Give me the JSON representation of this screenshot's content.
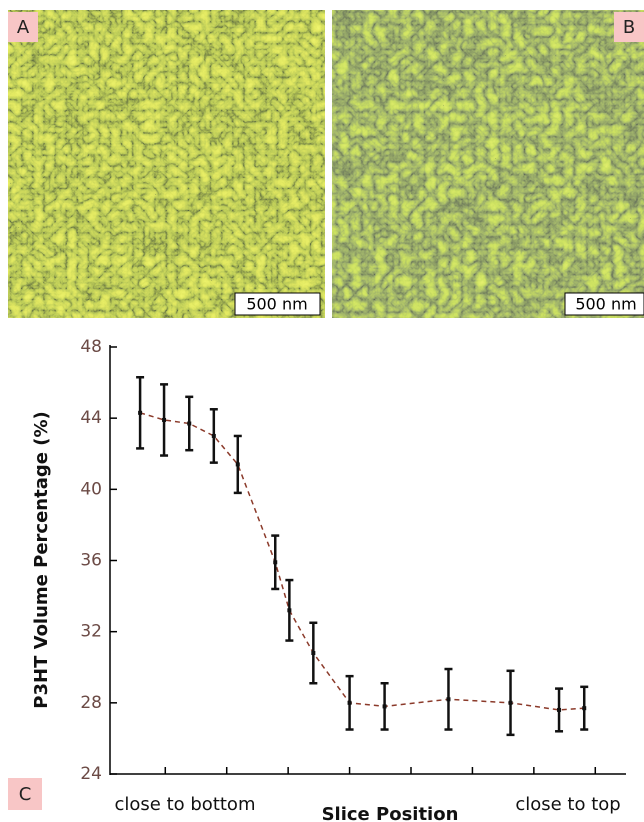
{
  "images": [
    {
      "label": "A",
      "scale_bar": "500 nm"
    },
    {
      "label": "B",
      "scale_bar": "500 nm"
    }
  ],
  "chart_label": "C",
  "chart_data": {
    "type": "line",
    "x_axis_label": "Slice Position",
    "y_axis_label": "P3HT Volume Percentage (%)",
    "annotations": [
      "close to bottom",
      "close to top"
    ],
    "x": [
      0.59,
      0.98,
      1.39,
      1.79,
      2.18,
      2.79,
      3.02,
      3.41,
      4.0,
      4.57,
      5.61,
      6.62,
      7.41,
      7.82
    ],
    "values": [
      44.3,
      43.9,
      43.7,
      43.0,
      41.4,
      35.9,
      33.2,
      30.8,
      28.0,
      27.8,
      28.2,
      28.0,
      27.6,
      27.7
    ],
    "errors": [
      2.0,
      2.0,
      1.5,
      1.5,
      1.6,
      1.5,
      1.7,
      1.7,
      1.5,
      1.3,
      1.7,
      1.8,
      1.2,
      1.2
    ],
    "color": "#8b3a2a",
    "xlim": [
      0.1,
      8.5
    ],
    "xticks": [
      1,
      2,
      3,
      4,
      5,
      6,
      7,
      8
    ],
    "ylim": [
      24,
      48
    ],
    "yticks": [
      24,
      28,
      32,
      36,
      40,
      44,
      48
    ]
  }
}
